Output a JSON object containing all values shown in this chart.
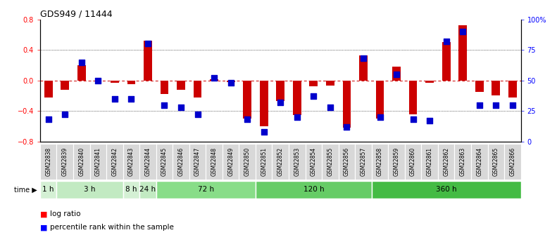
{
  "title": "GDS949 / 11444",
  "samples": [
    "GSM22838",
    "GSM22839",
    "GSM22840",
    "GSM22841",
    "GSM22842",
    "GSM22843",
    "GSM22844",
    "GSM22845",
    "GSM22846",
    "GSM22847",
    "GSM22848",
    "GSM22849",
    "GSM22850",
    "GSM22851",
    "GSM22852",
    "GSM22853",
    "GSM22854",
    "GSM22855",
    "GSM22856",
    "GSM22857",
    "GSM22858",
    "GSM22859",
    "GSM22860",
    "GSM22861",
    "GSM22862",
    "GSM22863",
    "GSM22864",
    "GSM22865",
    "GSM22866"
  ],
  "log_ratio": [
    -0.22,
    -0.12,
    0.2,
    0.0,
    -0.03,
    -0.05,
    0.52,
    -0.18,
    -0.12,
    -0.22,
    0.02,
    -0.02,
    -0.5,
    -0.6,
    -0.27,
    -0.45,
    -0.08,
    -0.07,
    -0.62,
    0.33,
    -0.5,
    0.18,
    -0.44,
    -0.03,
    0.5,
    0.72,
    -0.15,
    -0.2,
    -0.22
  ],
  "percentile": [
    18,
    22,
    65,
    50,
    35,
    35,
    80,
    30,
    28,
    22,
    52,
    48,
    18,
    8,
    32,
    20,
    37,
    28,
    12,
    68,
    20,
    55,
    18,
    17,
    82,
    90,
    30,
    30,
    30
  ],
  "time_groups": [
    {
      "label": "1 h",
      "start": 0,
      "end": 1,
      "color": "#d4f0d4"
    },
    {
      "label": "3 h",
      "start": 1,
      "end": 5,
      "color": "#c2eac2"
    },
    {
      "label": "8 h",
      "start": 5,
      "end": 6,
      "color": "#d4f0d4"
    },
    {
      "label": "24 h",
      "start": 6,
      "end": 7,
      "color": "#c2eac2"
    },
    {
      "label": "72 h",
      "start": 7,
      "end": 13,
      "color": "#88dd88"
    },
    {
      "label": "120 h",
      "start": 13,
      "end": 20,
      "color": "#66cc66"
    },
    {
      "label": "360 h",
      "start": 20,
      "end": 29,
      "color": "#44bb44"
    }
  ],
  "bar_color": "#cc0000",
  "dot_color": "#0000cc",
  "zero_line_color": "#cc0000",
  "grid_color": "#333333",
  "ylim": [
    -0.8,
    0.8
  ],
  "yticks": [
    -0.8,
    -0.4,
    0.0,
    0.4,
    0.8
  ],
  "y_right_ticks": [
    0,
    25,
    50,
    75,
    100
  ],
  "y_right_labels": [
    "0",
    "25",
    "50",
    "75",
    "100%"
  ],
  "legend_log": "log ratio",
  "legend_pct": "percentile rank within the sample",
  "bar_width": 0.5,
  "dot_size": 28
}
